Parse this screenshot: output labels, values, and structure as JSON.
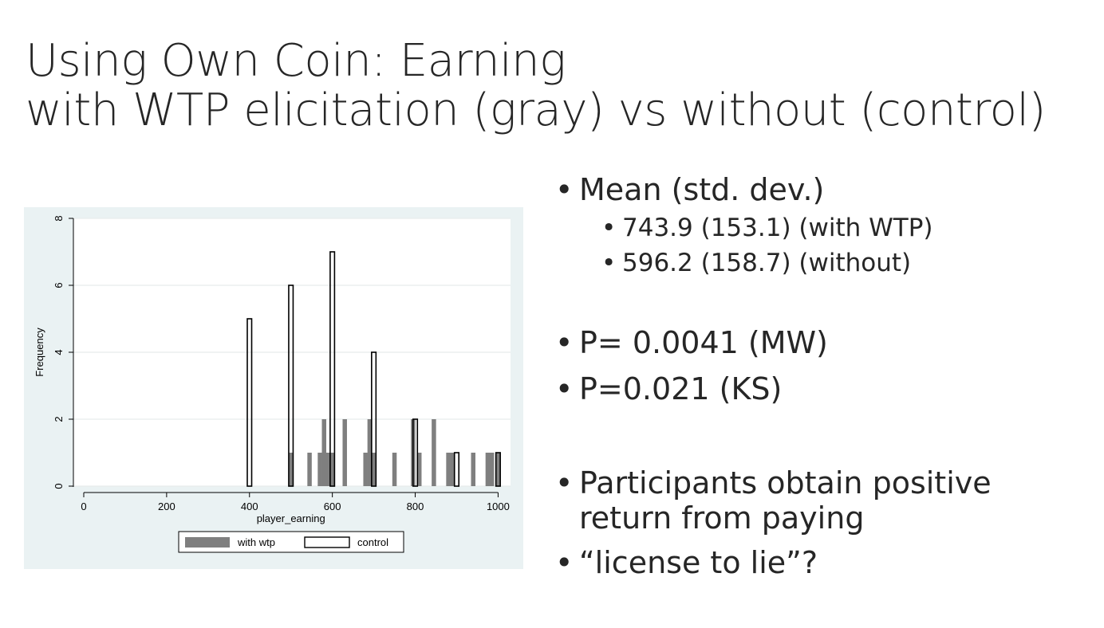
{
  "slide": {
    "title_line1": "Using Own Coin: Earning",
    "title_line2": "with WTP elicitation (gray) vs without (control)"
  },
  "bullets": {
    "mean_header": "Mean (std. dev.)",
    "mean_wtp": "743.9 (153.1) (with WTP)",
    "mean_without": "596.2 (158.7) (without)",
    "p_mw": "P= 0.0041 (MW)",
    "p_ks": "P=0.021 (KS)",
    "participants": "Participants obtain positive return from paying",
    "license": "“license to lie”?",
    "bullet_symbol": "•"
  },
  "chart_data": {
    "type": "bar",
    "title": "",
    "xlabel": "player_earning",
    "ylabel": "Frequency",
    "xlim": [
      -25,
      1030
    ],
    "ylim": [
      0,
      8
    ],
    "xticks": [
      0,
      200,
      400,
      600,
      800,
      1000
    ],
    "yticks": [
      0,
      2,
      4,
      6,
      8
    ],
    "grid": true,
    "legend_position": "bottom",
    "colors": {
      "background": "#eaf2f3",
      "plot_area": "#ffffff",
      "with_wtp_fill": "#7f7f7f",
      "control_fill": "#ffffff",
      "control_stroke": "#000000",
      "grid": "#e6ecec",
      "axis": "#000000"
    },
    "series": [
      {
        "name": "with wtp",
        "style": "filled-gray",
        "bars": [
          {
            "x": 500,
            "y": 1
          },
          {
            "x": 545,
            "y": 1
          },
          {
            "x": 570,
            "y": 1
          },
          {
            "x": 580,
            "y": 2
          },
          {
            "x": 590,
            "y": 1
          },
          {
            "x": 600,
            "y": 1
          },
          {
            "x": 630,
            "y": 2
          },
          {
            "x": 680,
            "y": 1
          },
          {
            "x": 690,
            "y": 2
          },
          {
            "x": 700,
            "y": 1
          },
          {
            "x": 750,
            "y": 1
          },
          {
            "x": 795,
            "y": 2
          },
          {
            "x": 810,
            "y": 1
          },
          {
            "x": 845,
            "y": 2
          },
          {
            "x": 880,
            "y": 1
          },
          {
            "x": 890,
            "y": 1
          },
          {
            "x": 940,
            "y": 1
          },
          {
            "x": 975,
            "y": 1
          },
          {
            "x": 985,
            "y": 1
          },
          {
            "x": 1000,
            "y": 1
          }
        ]
      },
      {
        "name": "control",
        "style": "outline",
        "bars": [
          {
            "x": 400,
            "y": 5
          },
          {
            "x": 500,
            "y": 6
          },
          {
            "x": 600,
            "y": 7
          },
          {
            "x": 700,
            "y": 4
          },
          {
            "x": 800,
            "y": 2
          },
          {
            "x": 900,
            "y": 1
          },
          {
            "x": 1000,
            "y": 1
          }
        ]
      }
    ]
  }
}
